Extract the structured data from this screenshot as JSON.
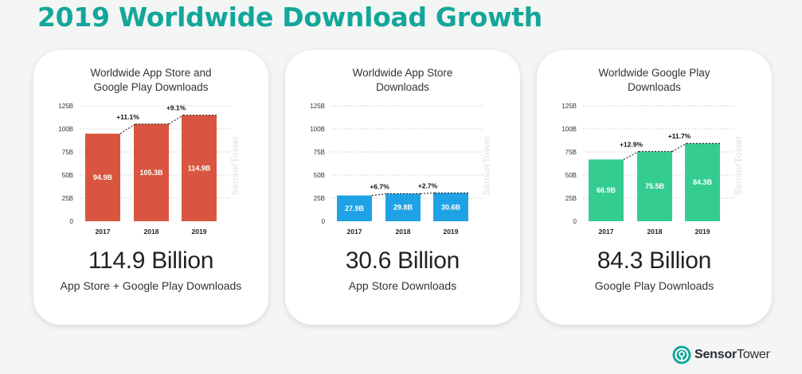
{
  "page": {
    "title": "2019 Worldwide Download Growth"
  },
  "colors": {
    "title": "#13a79a",
    "card1": "#d9553f",
    "card2": "#1fa2e5",
    "card3": "#35cc91"
  },
  "cards": [
    {
      "title_lines": [
        "Worldwide App Store and",
        "Google Play Downloads"
      ],
      "big_number": "114.9 Billion",
      "caption": "App Store + Google Play Downloads"
    },
    {
      "title_lines": [
        "Worldwide App Store",
        "Downloads"
      ],
      "big_number": "30.6 Billion",
      "caption": "App Store Downloads"
    },
    {
      "title_lines": [
        "Worldwide Google Play",
        "Downloads"
      ],
      "big_number": "84.3 Billion",
      "caption": "Google Play Downloads"
    }
  ],
  "watermark": "SensorTower",
  "logo": {
    "part1": "Sensor",
    "part2": "Tower",
    "icon": "sensor-tower-logo-icon"
  },
  "chart_data": [
    {
      "type": "bar",
      "title": "Worldwide App Store and Google Play Downloads",
      "categories": [
        "2017",
        "2018",
        "2019"
      ],
      "values": [
        94.9,
        105.3,
        114.9
      ],
      "value_labels": [
        "94.9B",
        "105.3B",
        "114.9B"
      ],
      "growth_labels": [
        "+11.1%",
        "+9.1%"
      ],
      "y_ticks": [
        "0",
        "25B",
        "50B",
        "75B",
        "100B",
        "125B"
      ],
      "ylim": [
        0,
        125
      ],
      "grid": true,
      "color": "#d9553f"
    },
    {
      "type": "bar",
      "title": "Worldwide App Store Downloads",
      "categories": [
        "2017",
        "2018",
        "2019"
      ],
      "values": [
        27.9,
        29.8,
        30.6
      ],
      "value_labels": [
        "27.9B",
        "29.8B",
        "30.6B"
      ],
      "growth_labels": [
        "+6.7%",
        "+2.7%"
      ],
      "y_ticks": [
        "0",
        "25B",
        "50B",
        "75B",
        "100B",
        "125B"
      ],
      "ylim": [
        0,
        125
      ],
      "grid": true,
      "color": "#1fa2e5"
    },
    {
      "type": "bar",
      "title": "Worldwide Google Play Downloads",
      "categories": [
        "2017",
        "2018",
        "2019"
      ],
      "values": [
        66.9,
        75.5,
        84.3
      ],
      "value_labels": [
        "66.9B",
        "75.5B",
        "84.3B"
      ],
      "growth_labels": [
        "+12.9%",
        "+11.7%"
      ],
      "y_ticks": [
        "0",
        "25B",
        "50B",
        "75B",
        "100B",
        "125B"
      ],
      "ylim": [
        0,
        125
      ],
      "grid": true,
      "color": "#35cc91"
    }
  ]
}
